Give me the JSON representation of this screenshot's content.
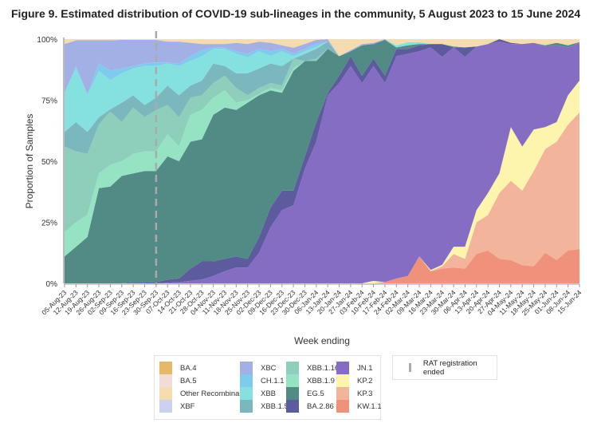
{
  "chart_data": {
    "type": "area",
    "stacked": true,
    "title": "Figure 9. Estimated distribution of COVID-19 sub-lineages in the community, 5 August 2023 to 15 June 2024",
    "xlabel": "Week ending",
    "ylabel": "Proportion of Samples",
    "ylim": [
      0,
      100
    ],
    "yticks": [
      "0%",
      "25%",
      "50%",
      "75%",
      "100%"
    ],
    "grid": false,
    "legend_position": "bottom",
    "annotation": {
      "label": "RAT registration ended",
      "at": "30-Sep-23",
      "style": "dashed-vertical-line",
      "color": "#aaaaaa"
    },
    "categories": [
      "05-Aug-23",
      "12-Aug-23",
      "19-Aug-23",
      "26-Aug-23",
      "02-Sep-23",
      "09-Sep-23",
      "16-Sep-23",
      "23-Sep-23",
      "30-Sep-23",
      "07-Oct-23",
      "14-Oct-23",
      "21-Oct-23",
      "28-Oct-23",
      "04-Nov-23",
      "11-Nov-23",
      "18-Nov-23",
      "25-Nov-23",
      "02-Dec-23",
      "09-Dec-23",
      "16-Dec-23",
      "23-Dec-23",
      "30-Dec-23",
      "06-Jan-24",
      "13-Jan-24",
      "20-Jan-24",
      "27-Jan-24",
      "03-Feb-24",
      "10-Feb-24",
      "17-Feb-24",
      "24-Feb-24",
      "02-Mar-24",
      "09-Mar-24",
      "16-Mar-24",
      "23-Mar-24",
      "30-Mar-24",
      "06-Apr-24",
      "13-Apr-24",
      "20-Apr-24",
      "27-Apr-24",
      "04-May-24",
      "11-May-24",
      "18-May-24",
      "25-May-24",
      "01-Jun-24",
      "08-Jun-24",
      "15-Jun-24"
    ],
    "stack_order": "bottom-to-top",
    "series": [
      {
        "name": "KW.1.1",
        "color": "#f0917c",
        "values": [
          0,
          0,
          0,
          0,
          0,
          0,
          0,
          0,
          0,
          0,
          0,
          0,
          0,
          0,
          0,
          0,
          0,
          0,
          0,
          0,
          0,
          0,
          0,
          0,
          0,
          0,
          0,
          0,
          0.5,
          2,
          3,
          11,
          5,
          6,
          6.5,
          6,
          12,
          13.5,
          10,
          9.5,
          7.5,
          7,
          12.5,
          9.5,
          13.5,
          14
        ]
      },
      {
        "name": "KP.3",
        "color": "#f2b49a",
        "values": [
          0,
          0,
          0,
          0,
          0,
          0,
          0,
          0,
          0,
          0,
          0,
          0,
          0,
          0,
          0,
          0,
          0,
          0,
          0,
          0,
          0,
          0,
          0,
          0,
          0,
          0,
          0,
          0,
          0,
          0,
          0,
          0,
          0,
          1,
          5.5,
          4,
          13,
          14.5,
          27,
          32.5,
          30.5,
          39,
          42.5,
          48.5,
          51.5,
          56
        ]
      },
      {
        "name": "KP.2",
        "color": "#fdf5ad",
        "values": [
          0,
          0,
          0,
          0,
          0,
          0,
          0,
          0,
          0,
          0,
          0,
          0,
          0,
          0,
          0,
          0,
          0,
          0,
          0,
          0,
          0,
          0,
          0,
          0,
          0,
          0,
          0,
          1,
          0,
          0,
          0,
          0,
          0.5,
          0.6,
          3,
          5,
          5,
          9,
          8,
          22,
          18,
          17,
          9,
          8,
          12,
          13
        ]
      },
      {
        "name": "JN.1",
        "color": "#866dc4",
        "values": [
          0,
          0,
          0,
          0,
          0,
          0,
          0,
          0,
          0,
          0.3,
          0.5,
          1,
          1.6,
          3,
          5,
          6.5,
          6.5,
          12.5,
          23,
          30,
          32,
          47,
          58,
          77,
          82,
          89,
          82,
          88,
          81.5,
          91,
          91,
          84,
          91.1,
          85.1,
          81.6,
          77.7,
          67,
          61,
          54,
          34,
          42,
          35.5,
          33,
          31.5,
          19.6,
          15.5
        ]
      },
      {
        "name": "BA.2.86",
        "color": "#5b5b9e",
        "values": [
          0,
          0,
          0,
          0,
          0,
          0,
          0.3,
          0.3,
          0.5,
          1.2,
          1.5,
          5,
          7.4,
          6,
          5,
          4.5,
          3.5,
          6.5,
          8,
          8,
          6,
          5,
          8,
          1,
          3,
          4,
          3,
          3,
          3,
          3,
          2,
          2.5,
          1.4,
          5.3,
          0,
          3.9,
          0,
          0,
          1,
          0.5,
          0,
          0,
          0,
          0,
          0,
          0
        ]
      },
      {
        "name": "EG.5",
        "color": "#528a85",
        "values": [
          11,
          15,
          19,
          39,
          40,
          44,
          44.7,
          45.7,
          45.5,
          50.5,
          48,
          52,
          50,
          60,
          62,
          60,
          64,
          58,
          48,
          40,
          49,
          39,
          25,
          18,
          8,
          2,
          12.5,
          6,
          14.7,
          0.6,
          1.5,
          0.5,
          0,
          0,
          0.4,
          0,
          0,
          0,
          0,
          0,
          0,
          0,
          0.5,
          1,
          0.9,
          0.3
        ]
      },
      {
        "name": "XBB.1.9",
        "color": "#96e3c4",
        "values": [
          10,
          10,
          9,
          6,
          9,
          6,
          8,
          8,
          8,
          9,
          6,
          11,
          12,
          7,
          7,
          3,
          1,
          0.5,
          1,
          1,
          1,
          0,
          0,
          0,
          0,
          0,
          0,
          0,
          0,
          0,
          0,
          0,
          0,
          0,
          0,
          0,
          0,
          0,
          0,
          0,
          0,
          0,
          0,
          0,
          0,
          0
        ]
      },
      {
        "name": "XBB.1.16",
        "color": "#8ecfbc",
        "values": [
          35,
          29,
          25,
          20,
          22,
          16,
          19,
          14,
          17,
          12,
          12,
          7,
          6,
          6,
          6,
          6,
          2,
          2.5,
          2,
          2,
          4,
          0,
          1,
          0,
          0,
          0,
          0,
          0,
          0,
          0,
          0,
          0,
          0,
          0,
          0,
          0,
          0,
          0,
          0,
          0,
          0,
          0,
          0,
          0,
          0,
          0
        ]
      },
      {
        "name": "XBB.1.5",
        "color": "#7ab8bd",
        "values": [
          6,
          12,
          9,
          3,
          1,
          8,
          5,
          5,
          5,
          8,
          9,
          5,
          6,
          8,
          4,
          6,
          9,
          8,
          8,
          8,
          0,
          3,
          4,
          3,
          0,
          0,
          0,
          0,
          0,
          0,
          0,
          0,
          0,
          0,
          0,
          0,
          0,
          0,
          0,
          0,
          0,
          0,
          0,
          0,
          0,
          0
        ]
      },
      {
        "name": "XBB",
        "color": "#85e1df",
        "values": [
          16,
          22,
          15,
          19,
          12,
          12,
          11,
          16,
          13,
          9,
          12,
          10,
          10,
          6,
          7,
          8,
          6.5,
          7,
          3,
          6,
          1,
          1,
          1,
          0,
          0,
          0,
          0,
          0,
          0,
          0.9,
          1.3,
          0.8,
          0,
          0,
          0,
          0,
          0,
          0,
          0,
          0,
          0,
          0,
          0,
          0,
          0,
          0
        ]
      },
      {
        "name": "CH.1.1",
        "color": "#7fcbee",
        "values": [
          0,
          1,
          0.5,
          3,
          4,
          2,
          1,
          1,
          1.5,
          0.5,
          1,
          2,
          2.5,
          0.5,
          0.5,
          1,
          1.5,
          1,
          2,
          1,
          1,
          1,
          1,
          0,
          0,
          0,
          0,
          0,
          0,
          0,
          0,
          0,
          0,
          0,
          0,
          0,
          0,
          0,
          0,
          0,
          0,
          0,
          0,
          0,
          0,
          0
        ]
      },
      {
        "name": "XBF",
        "color": "#cdd0ee",
        "values": [
          0,
          0,
          0,
          0,
          0,
          0,
          0,
          0,
          0,
          0,
          0,
          0,
          0,
          0,
          0,
          0,
          0,
          0,
          0,
          0,
          0,
          0,
          0,
          0,
          0,
          0,
          0,
          0,
          0,
          0,
          0,
          0,
          0,
          0,
          0,
          0,
          0,
          0,
          0,
          0,
          0,
          0,
          0,
          0,
          0,
          0
        ]
      },
      {
        "name": "XBC",
        "color": "#a3b0e6",
        "values": [
          20,
          10.5,
          22,
          9.5,
          12.5,
          11.7,
          10.7,
          9.7,
          9.2,
          8.5,
          9,
          5.5,
          2.5,
          1.5,
          1.5,
          3.5,
          4,
          3,
          3.5,
          1.5,
          2.5,
          2,
          1.7,
          1,
          0,
          0.5,
          0.5,
          0.5,
          0.3,
          0,
          0,
          0,
          0,
          0,
          0,
          0,
          0,
          0,
          0,
          0,
          0,
          0,
          0,
          0,
          0,
          0
        ]
      },
      {
        "name": "Other Recombinant",
        "color": "#f5dcb0",
        "values": [
          2,
          0.5,
          0.5,
          0.5,
          0.5,
          0.3,
          0.3,
          0.3,
          0.3,
          1,
          1,
          1.5,
          2,
          2,
          2,
          1.5,
          2,
          1,
          1.5,
          2.5,
          3.5,
          2,
          0.3,
          0,
          7,
          4.5,
          2,
          1.5,
          0,
          2.5,
          1.2,
          1.2,
          2,
          2,
          3,
          3.4,
          3,
          2,
          0,
          1.5,
          2,
          1.5,
          2.5,
          1.5,
          2.5,
          1.2
        ]
      },
      {
        "name": "BA.5",
        "color": "#f2dcd6",
        "values": [
          0,
          0,
          0,
          0,
          0,
          0,
          0,
          0,
          0,
          0,
          0,
          0,
          0,
          0,
          0,
          0,
          0,
          0,
          0,
          0,
          0,
          0,
          0,
          0,
          0,
          0,
          0,
          0,
          0,
          0,
          0,
          0,
          0,
          0,
          0,
          0,
          0,
          0,
          0,
          0,
          0,
          0,
          0,
          0,
          0,
          0
        ]
      },
      {
        "name": "BA.4",
        "color": "#e8b86a",
        "values": [
          0,
          0,
          0,
          0,
          0,
          0,
          0,
          0,
          0,
          0,
          0,
          0,
          0,
          0,
          0,
          0,
          0,
          0,
          0,
          0,
          0,
          0,
          0,
          0,
          0,
          0,
          0,
          0,
          0,
          0,
          0,
          0,
          0,
          0,
          0,
          0,
          0,
          0,
          0,
          0,
          0,
          0,
          0,
          0,
          0,
          0
        ]
      }
    ],
    "legend_columns": [
      [
        "BA.4",
        "BA.5",
        "Other Recombinant",
        "XBF"
      ],
      [
        "XBC",
        "CH.1.1",
        "XBB",
        "XBB.1.5"
      ],
      [
        "XBB.1.16",
        "XBB.1.9",
        "EG.5",
        "BA.2.86"
      ],
      [
        "JN.1",
        "KP.2",
        "KP.3",
        "KW.1.1"
      ]
    ]
  }
}
